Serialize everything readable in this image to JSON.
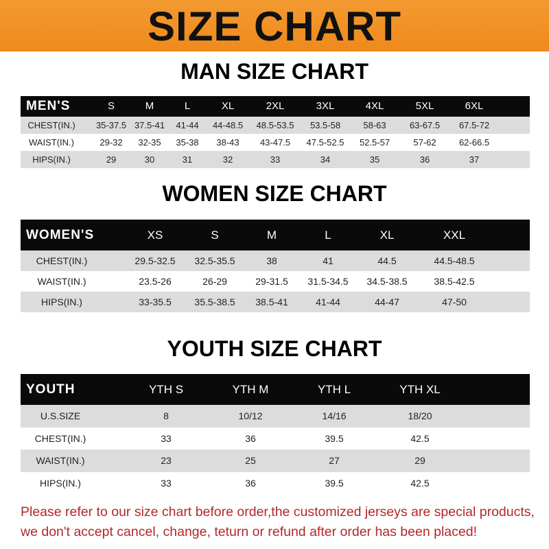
{
  "banner_title": "SIZE CHART",
  "men": {
    "title": "MAN SIZE CHART",
    "header": [
      "MEN'S",
      "S",
      "M",
      "L",
      "XL",
      "2XL",
      "3XL",
      "4XL",
      "5XL",
      "6XL"
    ],
    "rows": [
      [
        "CHEST(IN.)",
        "35-37.5",
        "37.5-41",
        "41-44",
        "44-48.5",
        "48.5-53.5",
        "53.5-58",
        "58-63",
        "63-67.5",
        "67.5-72"
      ],
      [
        "WAIST(IN.)",
        "29-32",
        "32-35",
        "35-38",
        "38-43",
        "43-47.5",
        "47.5-52.5",
        "52.5-57",
        "57-62",
        "62-66.5"
      ],
      [
        "HIPS(IN.)",
        "29",
        "30",
        "31",
        "32",
        "33",
        "34",
        "35",
        "36",
        "37"
      ]
    ]
  },
  "women": {
    "title": "WOMEN SIZE CHART",
    "header": [
      "WOMEN'S",
      "XS",
      "S",
      "M",
      "L",
      "XL",
      "XXL"
    ],
    "rows": [
      [
        "CHEST(IN.)",
        "29.5-32.5",
        "32.5-35.5",
        "38",
        "41",
        "44.5",
        "44.5-48.5"
      ],
      [
        "WAIST(IN.)",
        "23.5-26",
        "26-29",
        "29-31.5",
        "31.5-34.5",
        "34.5-38.5",
        "38.5-42.5"
      ],
      [
        "HIPS(IN.)",
        "33-35.5",
        "35.5-38.5",
        "38.5-41",
        "41-44",
        "44-47",
        "47-50"
      ]
    ]
  },
  "youth": {
    "title": "YOUTH SIZE CHART",
    "header": [
      "YOUTH",
      "YTH S",
      "YTH M",
      "YTH L",
      "YTH XL"
    ],
    "rows": [
      [
        "U.S.SIZE",
        "8",
        "10/12",
        "14/16",
        "18/20"
      ],
      [
        "CHEST(IN.)",
        "33",
        "36",
        "39.5",
        "42.5"
      ],
      [
        "WAIST(IN.)",
        "23",
        "25",
        "27",
        "29"
      ],
      [
        "HIPS(IN.)",
        "33",
        "36",
        "39.5",
        "42.5"
      ]
    ]
  },
  "note": [
    "Please refer to our size chart before order,the customized jerseys are special products,",
    "we don't accept cancel, change, teturn or refund after order has been placed!"
  ],
  "colors": {
    "banner": "#ef8a1c",
    "header_row": "#0a0a0a",
    "stripe": "#dcdcdc",
    "note": "#b3282a"
  }
}
